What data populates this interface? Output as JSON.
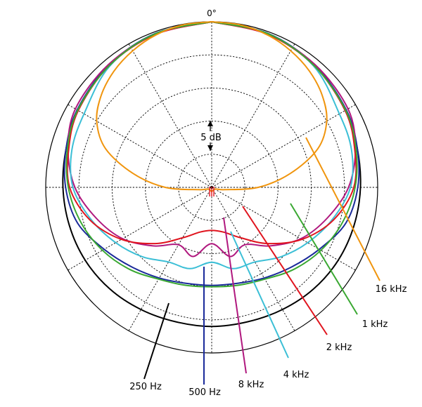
{
  "chart_data": {
    "type": "polar",
    "angle_label": "0°",
    "scale_label": "5 dB",
    "r_step_db": 5,
    "rings": 5,
    "series": [
      {
        "name": "250 Hz",
        "color": "#000000",
        "points": [
          [
            0,
            0
          ],
          [
            20,
            -0.3
          ],
          [
            40,
            -0.9
          ],
          [
            60,
            -1.7
          ],
          [
            75,
            -2.3
          ],
          [
            90,
            -2.6
          ],
          [
            105,
            -2.8
          ],
          [
            120,
            -3.0
          ],
          [
            135,
            -3.3
          ],
          [
            150,
            -3.7
          ],
          [
            165,
            -4.0
          ],
          [
            180,
            -4.0
          ],
          [
            195,
            -4.0
          ],
          [
            210,
            -3.7
          ],
          [
            225,
            -3.3
          ],
          [
            240,
            -3.0
          ],
          [
            255,
            -2.8
          ],
          [
            270,
            -2.6
          ],
          [
            285,
            -2.3
          ],
          [
            300,
            -1.7
          ],
          [
            320,
            -0.9
          ],
          [
            340,
            -0.3
          ],
          [
            360,
            0
          ]
        ]
      },
      {
        "name": "500 Hz",
        "color": "#1a2a9a",
        "points": [
          [
            0,
            0
          ],
          [
            20,
            -0.25
          ],
          [
            40,
            -0.9
          ],
          [
            60,
            -1.6
          ],
          [
            75,
            -2.3
          ],
          [
            90,
            -3.0
          ],
          [
            105,
            -4.1
          ],
          [
            120,
            -6.3
          ],
          [
            135,
            -8.0
          ],
          [
            150,
            -9.2
          ],
          [
            165,
            -10.0
          ],
          [
            180,
            -10.2
          ],
          [
            195,
            -10.0
          ],
          [
            210,
            -9.2
          ],
          [
            225,
            -8.0
          ],
          [
            240,
            -6.3
          ],
          [
            255,
            -4.1
          ],
          [
            270,
            -3.0
          ],
          [
            285,
            -2.3
          ],
          [
            300,
            -1.6
          ],
          [
            320,
            -0.9
          ],
          [
            340,
            -0.25
          ],
          [
            360,
            0
          ]
        ]
      },
      {
        "name": "8 kHz",
        "color": "#b0187e",
        "points": [
          [
            0,
            0
          ],
          [
            20,
            -0.4
          ],
          [
            40,
            -0.8
          ],
          [
            60,
            -1.3
          ],
          [
            75,
            -2.6
          ],
          [
            90,
            -4.4
          ],
          [
            105,
            -7.0
          ],
          [
            120,
            -9.5
          ],
          [
            135,
            -12.5
          ],
          [
            150,
            -15.0
          ],
          [
            165,
            -14.2
          ],
          [
            180,
            -16.5
          ],
          [
            195,
            -14.2
          ],
          [
            210,
            -15.0
          ],
          [
            225,
            -12.5
          ],
          [
            240,
            -9.5
          ],
          [
            255,
            -7.0
          ],
          [
            270,
            -4.4
          ],
          [
            285,
            -2.6
          ],
          [
            300,
            -1.3
          ],
          [
            320,
            -0.8
          ],
          [
            340,
            -0.4
          ],
          [
            360,
            0
          ]
        ]
      },
      {
        "name": "4 kHz",
        "color": "#3cbfd6",
        "points": [
          [
            0,
            0
          ],
          [
            20,
            -0.3
          ],
          [
            40,
            -1.1
          ],
          [
            60,
            -2.8
          ],
          [
            75,
            -3.2
          ],
          [
            90,
            -4.1
          ],
          [
            105,
            -6.2
          ],
          [
            120,
            -8.3
          ],
          [
            135,
            -10.2
          ],
          [
            150,
            -12.0
          ],
          [
            165,
            -12.3
          ],
          [
            180,
            -13.7
          ],
          [
            195,
            -12.3
          ],
          [
            210,
            -12.0
          ],
          [
            225,
            -10.2
          ],
          [
            240,
            -8.3
          ],
          [
            255,
            -6.2
          ],
          [
            270,
            -4.1
          ],
          [
            285,
            -3.2
          ],
          [
            300,
            -2.8
          ],
          [
            320,
            -1.1
          ],
          [
            340,
            -0.3
          ],
          [
            360,
            0
          ]
        ]
      },
      {
        "name": "2 kHz",
        "color": "#e0141e",
        "points": [
          [
            0,
            0
          ],
          [
            20,
            -0.4
          ],
          [
            40,
            -1.0
          ],
          [
            60,
            -1.8
          ],
          [
            75,
            -2.7
          ],
          [
            90,
            -3.6
          ],
          [
            105,
            -6.0
          ],
          [
            120,
            -9.3
          ],
          [
            135,
            -13.0
          ],
          [
            150,
            -16.2
          ],
          [
            165,
            -18.0
          ],
          [
            180,
            -18.5
          ],
          [
            195,
            -18.0
          ],
          [
            210,
            -16.2
          ],
          [
            225,
            -13.0
          ],
          [
            240,
            -9.3
          ],
          [
            255,
            -6.0
          ],
          [
            270,
            -3.6
          ],
          [
            285,
            -2.7
          ],
          [
            300,
            -1.8
          ],
          [
            320,
            -1.0
          ],
          [
            340,
            -0.4
          ],
          [
            360,
            0
          ]
        ]
      },
      {
        "name": "1 kHz",
        "color": "#3aa832",
        "points": [
          [
            0,
            0
          ],
          [
            20,
            -0.3
          ],
          [
            40,
            -1.0
          ],
          [
            60,
            -1.7
          ],
          [
            75,
            -2.5
          ],
          [
            90,
            -3.4
          ],
          [
            105,
            -4.6
          ],
          [
            120,
            -6.0
          ],
          [
            135,
            -7.5
          ],
          [
            150,
            -9.0
          ],
          [
            165,
            -9.7
          ],
          [
            180,
            -10.0
          ],
          [
            195,
            -9.7
          ],
          [
            210,
            -9.0
          ],
          [
            225,
            -7.5
          ],
          [
            240,
            -6.0
          ],
          [
            255,
            -4.6
          ],
          [
            270,
            -3.4
          ],
          [
            285,
            -2.5
          ],
          [
            300,
            -1.7
          ],
          [
            320,
            -1.0
          ],
          [
            340,
            -0.3
          ],
          [
            360,
            0
          ]
        ]
      },
      {
        "name": "16 kHz",
        "color": "#f0950e",
        "points": [
          [
            0,
            0
          ],
          [
            10,
            -0.1
          ],
          [
            20,
            -0.5
          ],
          [
            30,
            -1.2
          ],
          [
            40,
            -2.1
          ],
          [
            50,
            -3.3
          ],
          [
            60,
            -5.0
          ],
          [
            70,
            -8.0
          ],
          [
            80,
            -13.0
          ],
          [
            90,
            -18.0
          ],
          [
            100,
            -23.0
          ],
          [
            115,
            -24.4
          ],
          [
            180,
            -24.4
          ],
          [
            245,
            -24.4
          ],
          [
            260,
            -23.0
          ],
          [
            270,
            -18.0
          ],
          [
            280,
            -13.0
          ],
          [
            290,
            -8.0
          ],
          [
            300,
            -5.0
          ],
          [
            310,
            -3.3
          ],
          [
            320,
            -2.1
          ],
          [
            330,
            -1.2
          ],
          [
            340,
            -0.5
          ],
          [
            350,
            -0.1
          ],
          [
            360,
            0
          ]
        ]
      }
    ],
    "legend_placement": "leader-lines",
    "grid": true
  }
}
